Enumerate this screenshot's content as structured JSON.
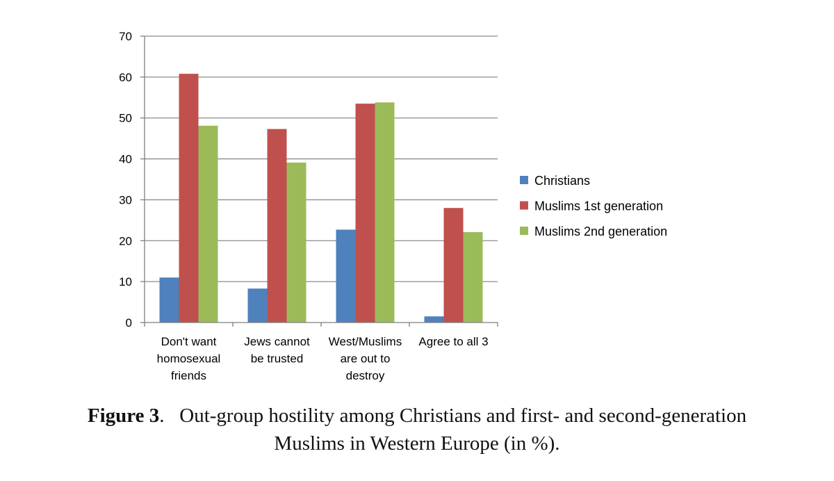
{
  "chart_data": {
    "type": "bar",
    "categories": [
      [
        "Don't want",
        "homosexual",
        "friends"
      ],
      [
        "Jews cannot",
        "be trusted"
      ],
      [
        "West/Muslims",
        "are out to",
        "destroy"
      ],
      [
        "Agree to all 3"
      ]
    ],
    "series": [
      {
        "name": "Christians",
        "color": "#4f81bd",
        "values": [
          11,
          8.3,
          22.7,
          1.5
        ]
      },
      {
        "name": "Muslims 1st generation",
        "color": "#c0504d",
        "values": [
          60.8,
          47.3,
          53.5,
          28
        ]
      },
      {
        "name": "Muslims 2nd generation",
        "color": "#9bbb59",
        "values": [
          48.1,
          39.1,
          53.8,
          22.1
        ]
      }
    ],
    "ylim": [
      0,
      70
    ],
    "yticks": [
      "0",
      "10",
      "20",
      "30",
      "40",
      "50",
      "60",
      "70"
    ],
    "grid": true,
    "legend_position": "right"
  },
  "caption": {
    "figure_label": "Figure 3",
    "separator": ".",
    "line1": "Out-group hostility among Christians and first- and second-generation",
    "line2": "Muslims in Western Europe (in %)."
  }
}
